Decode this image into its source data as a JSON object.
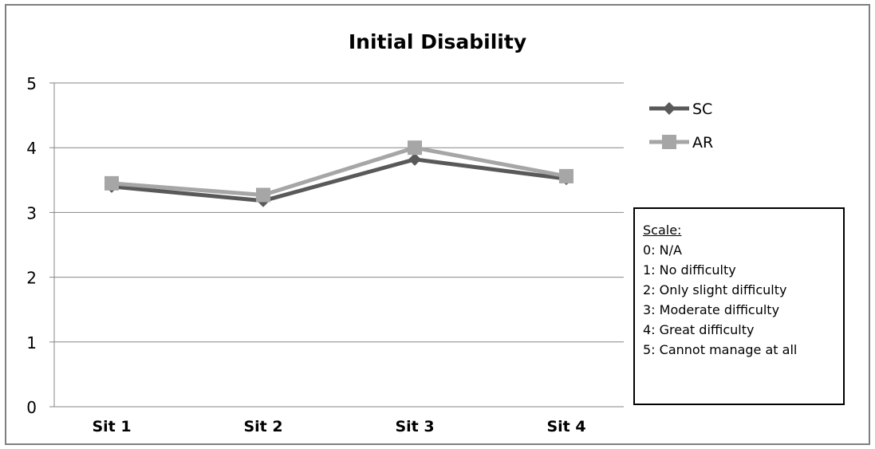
{
  "chart_data": {
    "type": "line",
    "title": "Initial Disability",
    "categories": [
      "Sit 1",
      "Sit 2",
      "Sit 3",
      "Sit 4"
    ],
    "ylim": [
      0,
      5
    ],
    "yticks": [
      0,
      1,
      2,
      3,
      4,
      5
    ],
    "grid": true,
    "legend_position": "right",
    "series": [
      {
        "name": "SC",
        "values": [
          3.4,
          3.18,
          3.82,
          3.52
        ],
        "color": "#595959",
        "marker": "diamond"
      },
      {
        "name": "AR",
        "values": [
          3.45,
          3.27,
          4.0,
          3.56
        ],
        "color": "#a6a6a6",
        "marker": "square"
      }
    ]
  },
  "scale_box": {
    "heading": "Scale:",
    "items": [
      "0: N/A",
      "1: No difficulty",
      "2: Only slight difficulty",
      "3: Moderate difficulty",
      "4: Great difficulty",
      "5: Cannot manage at all"
    ]
  }
}
